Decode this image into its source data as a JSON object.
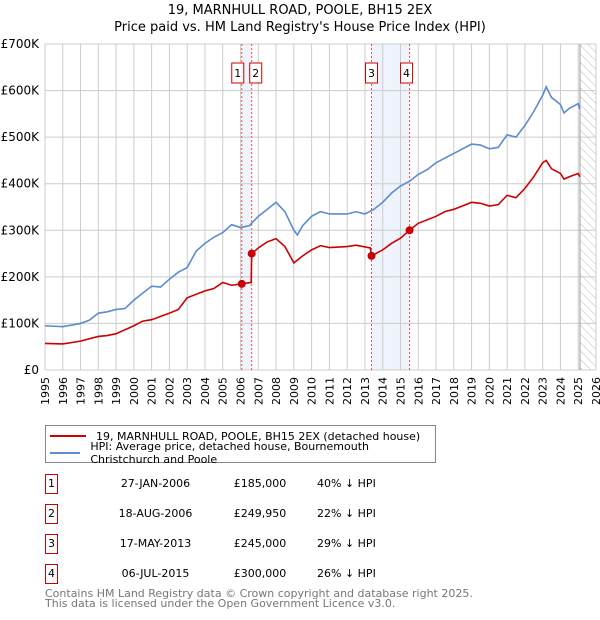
{
  "chart_data": {
    "type": "line",
    "title": "19, MARNHULL ROAD, POOLE, BH15 2EX",
    "subtitle": "Price paid vs. HM Land Registry's House Price Index (HPI)",
    "xlim": [
      1995,
      2026
    ],
    "ylim": [
      0,
      700000
    ],
    "yticks": [
      {
        "v": 0,
        "label": "£0"
      },
      {
        "v": 100000,
        "label": "£100K"
      },
      {
        "v": 200000,
        "label": "£200K"
      },
      {
        "v": 300000,
        "label": "£300K"
      },
      {
        "v": 400000,
        "label": "£400K"
      },
      {
        "v": 500000,
        "label": "£500K"
      },
      {
        "v": 600000,
        "label": "£600K"
      },
      {
        "v": 700000,
        "label": "£700K"
      }
    ],
    "xticks": [
      "1995",
      "1996",
      "1997",
      "1998",
      "1999",
      "2000",
      "2001",
      "2002",
      "2003",
      "2004",
      "2005",
      "2006",
      "2007",
      "2008",
      "2009",
      "2010",
      "2011",
      "2012",
      "2013",
      "2014",
      "2015",
      "2016",
      "2017",
      "2018",
      "2019",
      "2020",
      "2021",
      "2022",
      "2023",
      "2024",
      "2025",
      "2026"
    ],
    "grid": true,
    "hatch_from": 2025.1,
    "shaded_ranges": [
      [
        2006.07,
        2006.63
      ],
      [
        2013.37,
        2015.51
      ]
    ],
    "series": [
      {
        "name": "19, MARNHULL ROAD, POOLE, BH15 2EX (detached house)",
        "color": "#cc0000",
        "points": [
          [
            1995,
            57
          ],
          [
            1996,
            56
          ],
          [
            1997,
            62
          ],
          [
            1998,
            72
          ],
          [
            1998.5,
            74
          ],
          [
            1999,
            78
          ],
          [
            2000,
            95
          ],
          [
            2000.5,
            105
          ],
          [
            2001,
            108
          ],
          [
            2002,
            122
          ],
          [
            2002.5,
            130
          ],
          [
            2003,
            155
          ],
          [
            2004,
            170
          ],
          [
            2004.5,
            175
          ],
          [
            2005,
            188
          ],
          [
            2005.5,
            182
          ],
          [
            2006.07,
            185
          ],
          [
            2006.6,
            188
          ],
          [
            2006.63,
            250
          ],
          [
            2007,
            262
          ],
          [
            2007.5,
            275
          ],
          [
            2008,
            282
          ],
          [
            2008.5,
            265
          ],
          [
            2009,
            230
          ],
          [
            2009.5,
            245
          ],
          [
            2010,
            258
          ],
          [
            2010.5,
            267
          ],
          [
            2011,
            263
          ],
          [
            2012,
            265
          ],
          [
            2012.5,
            268
          ],
          [
            2013.3,
            262
          ],
          [
            2013.37,
            245
          ],
          [
            2014,
            258
          ],
          [
            2014.5,
            272
          ],
          [
            2015,
            283
          ],
          [
            2015.51,
            300
          ],
          [
            2016,
            315
          ],
          [
            2017,
            330
          ],
          [
            2017.5,
            340
          ],
          [
            2018,
            345
          ],
          [
            2019,
            360
          ],
          [
            2019.5,
            358
          ],
          [
            2020,
            352
          ],
          [
            2020.5,
            355
          ],
          [
            2021,
            375
          ],
          [
            2021.5,
            370
          ],
          [
            2022,
            390
          ],
          [
            2022.5,
            415
          ],
          [
            2023,
            445
          ],
          [
            2023.2,
            450
          ],
          [
            2023.5,
            432
          ],
          [
            2024,
            422
          ],
          [
            2024.2,
            410
          ],
          [
            2024.5,
            415
          ],
          [
            2025,
            422
          ],
          [
            2025.1,
            415
          ]
        ]
      },
      {
        "name": "HPI: Average price, detached house, Bournemouth Christchurch and Poole",
        "color": "#5b8bd0",
        "points": [
          [
            1995,
            95
          ],
          [
            1996,
            93
          ],
          [
            1997,
            100
          ],
          [
            1997.5,
            107
          ],
          [
            1998,
            122
          ],
          [
            1998.5,
            125
          ],
          [
            1999,
            130
          ],
          [
            1999.5,
            132
          ],
          [
            2000,
            150
          ],
          [
            2000.5,
            165
          ],
          [
            2001,
            180
          ],
          [
            2001.5,
            178
          ],
          [
            2002,
            195
          ],
          [
            2002.5,
            210
          ],
          [
            2003,
            220
          ],
          [
            2003.5,
            255
          ],
          [
            2004,
            272
          ],
          [
            2004.5,
            285
          ],
          [
            2005,
            295
          ],
          [
            2005.5,
            312
          ],
          [
            2006,
            306
          ],
          [
            2006.5,
            310
          ],
          [
            2007,
            330
          ],
          [
            2007.5,
            345
          ],
          [
            2008,
            360
          ],
          [
            2008.5,
            340
          ],
          [
            2009,
            300
          ],
          [
            2009.2,
            290
          ],
          [
            2009.5,
            310
          ],
          [
            2010,
            330
          ],
          [
            2010.5,
            340
          ],
          [
            2011,
            335
          ],
          [
            2012,
            335
          ],
          [
            2012.5,
            340
          ],
          [
            2013,
            335
          ],
          [
            2013.5,
            345
          ],
          [
            2014,
            360
          ],
          [
            2014.5,
            380
          ],
          [
            2015,
            395
          ],
          [
            2015.5,
            405
          ],
          [
            2016,
            420
          ],
          [
            2016.5,
            430
          ],
          [
            2017,
            445
          ],
          [
            2017.5,
            455
          ],
          [
            2018,
            465
          ],
          [
            2018.5,
            475
          ],
          [
            2019,
            485
          ],
          [
            2019.5,
            483
          ],
          [
            2020,
            475
          ],
          [
            2020.5,
            478
          ],
          [
            2021,
            505
          ],
          [
            2021.5,
            500
          ],
          [
            2022,
            525
          ],
          [
            2022.5,
            555
          ],
          [
            2023,
            590
          ],
          [
            2023.2,
            608
          ],
          [
            2023.5,
            585
          ],
          [
            2024,
            570
          ],
          [
            2024.2,
            552
          ],
          [
            2024.5,
            562
          ],
          [
            2025,
            572
          ],
          [
            2025.1,
            560
          ]
        ]
      }
    ],
    "sales": [
      {
        "num": "1",
        "x": 2006.07,
        "value": 185000
      },
      {
        "num": "2",
        "x": 2006.63,
        "value": 249950
      },
      {
        "num": "3",
        "x": 2013.37,
        "value": 245000
      },
      {
        "num": "4",
        "x": 2015.51,
        "value": 300000
      }
    ]
  },
  "legend": {
    "property": "19, MARNHULL ROAD, POOLE, BH15 2EX (detached house)",
    "hpi": "HPI: Average price, detached house, Bournemouth Christchurch and Poole"
  },
  "transactions": [
    {
      "num": "1",
      "date": "27-JAN-2006",
      "price": "£185,000",
      "hpi": "40% ↓ HPI"
    },
    {
      "num": "2",
      "date": "18-AUG-2006",
      "price": "£249,950",
      "hpi": "22% ↓ HPI"
    },
    {
      "num": "3",
      "date": "17-MAY-2013",
      "price": "£245,000",
      "hpi": "29% ↓ HPI"
    },
    {
      "num": "4",
      "date": "06-JUL-2015",
      "price": "£300,000",
      "hpi": "26% ↓ HPI"
    }
  ],
  "footer": {
    "line1": "Contains HM Land Registry data © Crown copyright and database right 2025.",
    "line2": "This data is licensed under the Open Government Licence v3.0."
  }
}
